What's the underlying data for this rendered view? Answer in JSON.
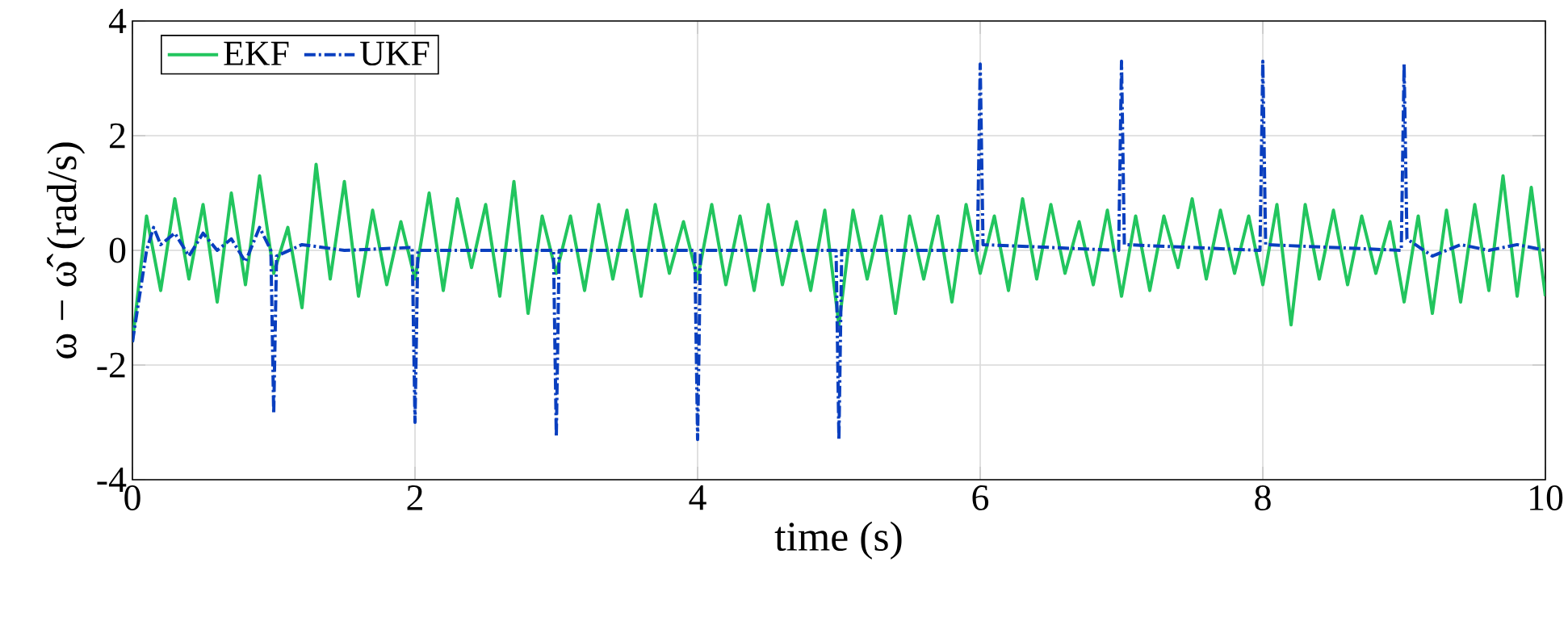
{
  "chart_data": {
    "type": "line",
    "xlabel": "time (s)",
    "ylabel": "ω − ω̂ (rad/s)",
    "xlim": [
      0,
      10
    ],
    "ylim": [
      -4,
      4
    ],
    "xticks": [
      0,
      2,
      4,
      6,
      8,
      10
    ],
    "yticks": [
      -4,
      -2,
      0,
      2,
      4
    ],
    "grid": true,
    "legend": "top left",
    "marker": "none",
    "series": [
      {
        "name": "EKF",
        "color": "#22c55e",
        "line_style": "solid",
        "x": [
          0,
          0.1,
          0.2,
          0.3,
          0.4,
          0.5,
          0.6,
          0.7,
          0.8,
          0.9,
          1.0,
          1.1,
          1.2,
          1.3,
          1.4,
          1.5,
          1.6,
          1.7,
          1.8,
          1.9,
          2.0,
          2.1,
          2.2,
          2.3,
          2.4,
          2.5,
          2.6,
          2.7,
          2.8,
          2.9,
          3.0,
          3.1,
          3.2,
          3.3,
          3.4,
          3.5,
          3.6,
          3.7,
          3.8,
          3.9,
          4.0,
          4.1,
          4.2,
          4.3,
          4.4,
          4.5,
          4.6,
          4.7,
          4.8,
          4.9,
          5.0,
          5.1,
          5.2,
          5.3,
          5.4,
          5.5,
          5.6,
          5.7,
          5.8,
          5.9,
          6.0,
          6.1,
          6.2,
          6.3,
          6.4,
          6.5,
          6.6,
          6.7,
          6.8,
          6.9,
          7.0,
          7.1,
          7.2,
          7.3,
          7.4,
          7.5,
          7.6,
          7.7,
          7.8,
          7.9,
          8.0,
          8.1,
          8.2,
          8.3,
          8.4,
          8.5,
          8.6,
          8.7,
          8.8,
          8.9,
          9.0,
          9.1,
          9.2,
          9.3,
          9.4,
          9.5,
          9.6,
          9.7,
          9.8,
          9.9,
          10.0
        ],
        "values": [
          -1.6,
          0.6,
          -0.7,
          0.9,
          -0.5,
          0.8,
          -0.9,
          1.0,
          -0.6,
          1.3,
          -0.4,
          0.4,
          -1.0,
          1.5,
          -0.5,
          1.2,
          -0.8,
          0.7,
          -0.6,
          0.5,
          -0.5,
          1.0,
          -0.7,
          0.9,
          -0.3,
          0.8,
          -0.8,
          1.2,
          -1.1,
          0.6,
          -0.4,
          0.6,
          -0.7,
          0.8,
          -0.5,
          0.7,
          -0.8,
          0.8,
          -0.4,
          0.5,
          -0.5,
          0.8,
          -0.6,
          0.6,
          -0.7,
          0.8,
          -0.6,
          0.5,
          -0.7,
          0.7,
          -1.3,
          0.7,
          -0.5,
          0.6,
          -1.1,
          0.6,
          -0.5,
          0.6,
          -0.9,
          0.8,
          -0.4,
          0.6,
          -0.7,
          0.9,
          -0.5,
          0.8,
          -0.4,
          0.5,
          -0.6,
          0.7,
          -0.8,
          0.6,
          -0.7,
          0.6,
          -0.3,
          0.9,
          -0.5,
          0.7,
          -0.4,
          0.6,
          -0.6,
          0.8,
          -1.3,
          0.8,
          -0.5,
          0.7,
          -0.6,
          0.6,
          -0.4,
          0.5,
          -0.9,
          0.6,
          -1.1,
          0.7,
          -0.9,
          0.8,
          -0.7,
          1.3,
          -0.8,
          1.1,
          -0.8
        ]
      },
      {
        "name": "UKF",
        "color": "#0a3fbf",
        "line_style": "dashed",
        "x": [
          0,
          0.05,
          0.1,
          0.15,
          0.2,
          0.3,
          0.4,
          0.5,
          0.6,
          0.7,
          0.8,
          0.9,
          0.98,
          1.0,
          1.02,
          1.2,
          1.5,
          1.98,
          2.0,
          2.02,
          2.98,
          3.0,
          3.02,
          3.98,
          4.0,
          4.02,
          4.98,
          5.0,
          5.02,
          5.98,
          6.0,
          6.02,
          6.98,
          7.0,
          7.02,
          7.98,
          8.0,
          8.02,
          8.98,
          9.0,
          9.02,
          9.2,
          9.4,
          9.6,
          9.8,
          10.0
        ],
        "values": [
          -1.6,
          -0.8,
          0.0,
          0.4,
          0.1,
          0.3,
          -0.1,
          0.3,
          0.0,
          0.2,
          -0.2,
          0.4,
          0.0,
          -2.85,
          -0.1,
          0.1,
          0.0,
          0.05,
          -3.0,
          0.0,
          0.0,
          -3.25,
          0.0,
          0.0,
          -3.3,
          0.0,
          0.0,
          -3.3,
          0.0,
          0.0,
          3.25,
          0.1,
          0.0,
          3.3,
          0.1,
          0.0,
          3.3,
          0.1,
          0.0,
          3.25,
          0.2,
          -0.1,
          0.1,
          0.0,
          0.1,
          0.0
        ]
      }
    ]
  }
}
